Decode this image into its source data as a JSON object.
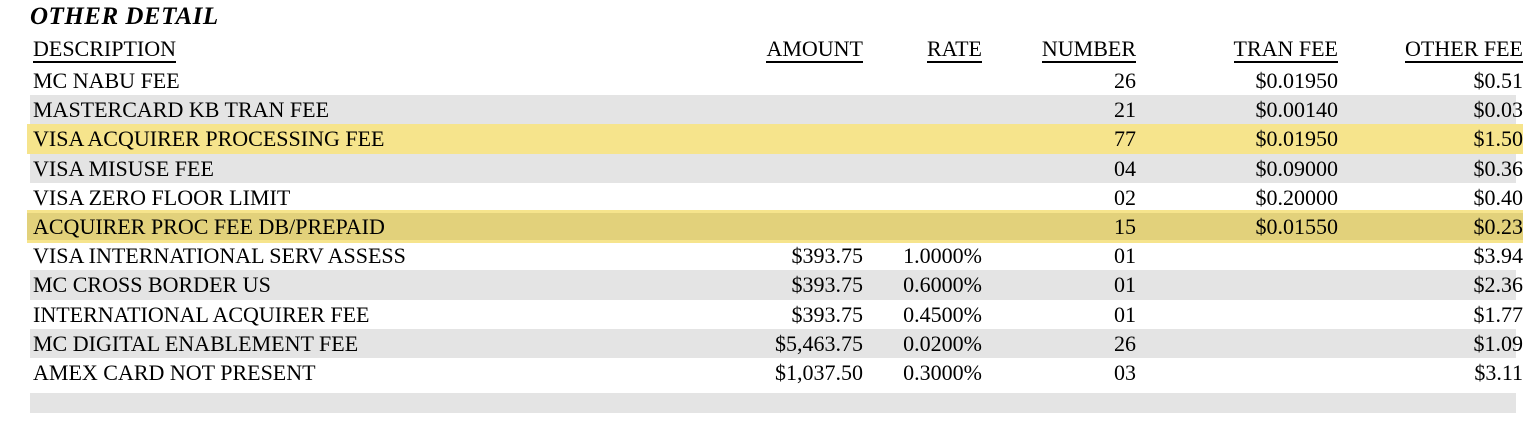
{
  "section": {
    "title": "OTHER DETAIL"
  },
  "table": {
    "columns": [
      {
        "key": "description",
        "label": "DESCRIPTION"
      },
      {
        "key": "amount",
        "label": "AMOUNT"
      },
      {
        "key": "rate",
        "label": "RATE"
      },
      {
        "key": "number",
        "label": "NUMBER"
      },
      {
        "key": "tran_fee",
        "label": "TRAN FEE"
      },
      {
        "key": "other_fee",
        "label": "OTHER FEE"
      }
    ],
    "rows": [
      {
        "description": "MC NABU FEE",
        "amount": "",
        "rate": "",
        "number": "26",
        "tran_fee": "$0.01950",
        "other_fee": "$0.51",
        "highlighted": false
      },
      {
        "description": "MASTERCARD KB TRAN FEE",
        "amount": "",
        "rate": "",
        "number": "21",
        "tran_fee": "$0.00140",
        "other_fee": "$0.03",
        "highlighted": false
      },
      {
        "description": "VISA ACQUIRER PROCESSING FEE",
        "amount": "",
        "rate": "",
        "number": "77",
        "tran_fee": "$0.01950",
        "other_fee": "$1.50",
        "highlighted": true
      },
      {
        "description": "VISA MISUSE FEE",
        "amount": "",
        "rate": "",
        "number": "04",
        "tran_fee": "$0.09000",
        "other_fee": "$0.36",
        "highlighted": false
      },
      {
        "description": "VISA ZERO FLOOR LIMIT",
        "amount": "",
        "rate": "",
        "number": "02",
        "tran_fee": "$0.20000",
        "other_fee": "$0.40",
        "highlighted": false
      },
      {
        "description": "ACQUIRER PROC FEE DB/PREPAID",
        "amount": "",
        "rate": "",
        "number": "15",
        "tran_fee": "$0.01550",
        "other_fee": "$0.23",
        "highlighted": true
      },
      {
        "description": "VISA INTERNATIONAL SERV ASSESS",
        "amount": "$393.75",
        "rate": "1.0000%",
        "number": "01",
        "tran_fee": "",
        "other_fee": "$3.94",
        "highlighted": false
      },
      {
        "description": "MC CROSS BORDER US",
        "amount": "$393.75",
        "rate": "0.6000%",
        "number": "01",
        "tran_fee": "",
        "other_fee": "$2.36",
        "highlighted": false
      },
      {
        "description": "INTERNATIONAL ACQUIRER FEE",
        "amount": "$393.75",
        "rate": "0.4500%",
        "number": "01",
        "tran_fee": "",
        "other_fee": "$1.77",
        "highlighted": false
      },
      {
        "description": "MC DIGITAL ENABLEMENT FEE",
        "amount": "$5,463.75",
        "rate": "0.0200%",
        "number": "26",
        "tran_fee": "",
        "other_fee": "$1.09",
        "highlighted": false
      },
      {
        "description": "AMEX CARD NOT PRESENT",
        "amount": "$1,037.50",
        "rate": "0.3000%",
        "number": "03",
        "tran_fee": "",
        "other_fee": "$3.11",
        "highlighted": false
      },
      {
        "description": "",
        "amount": "",
        "rate": "",
        "number": "",
        "tran_fee": "",
        "other_fee": "",
        "highlighted": false
      }
    ]
  },
  "colors": {
    "zebra_gray": "#e4e4e4",
    "highlight_light": "#f6e48c",
    "highlight_dark": "#e2d17b",
    "text": "#000000"
  }
}
